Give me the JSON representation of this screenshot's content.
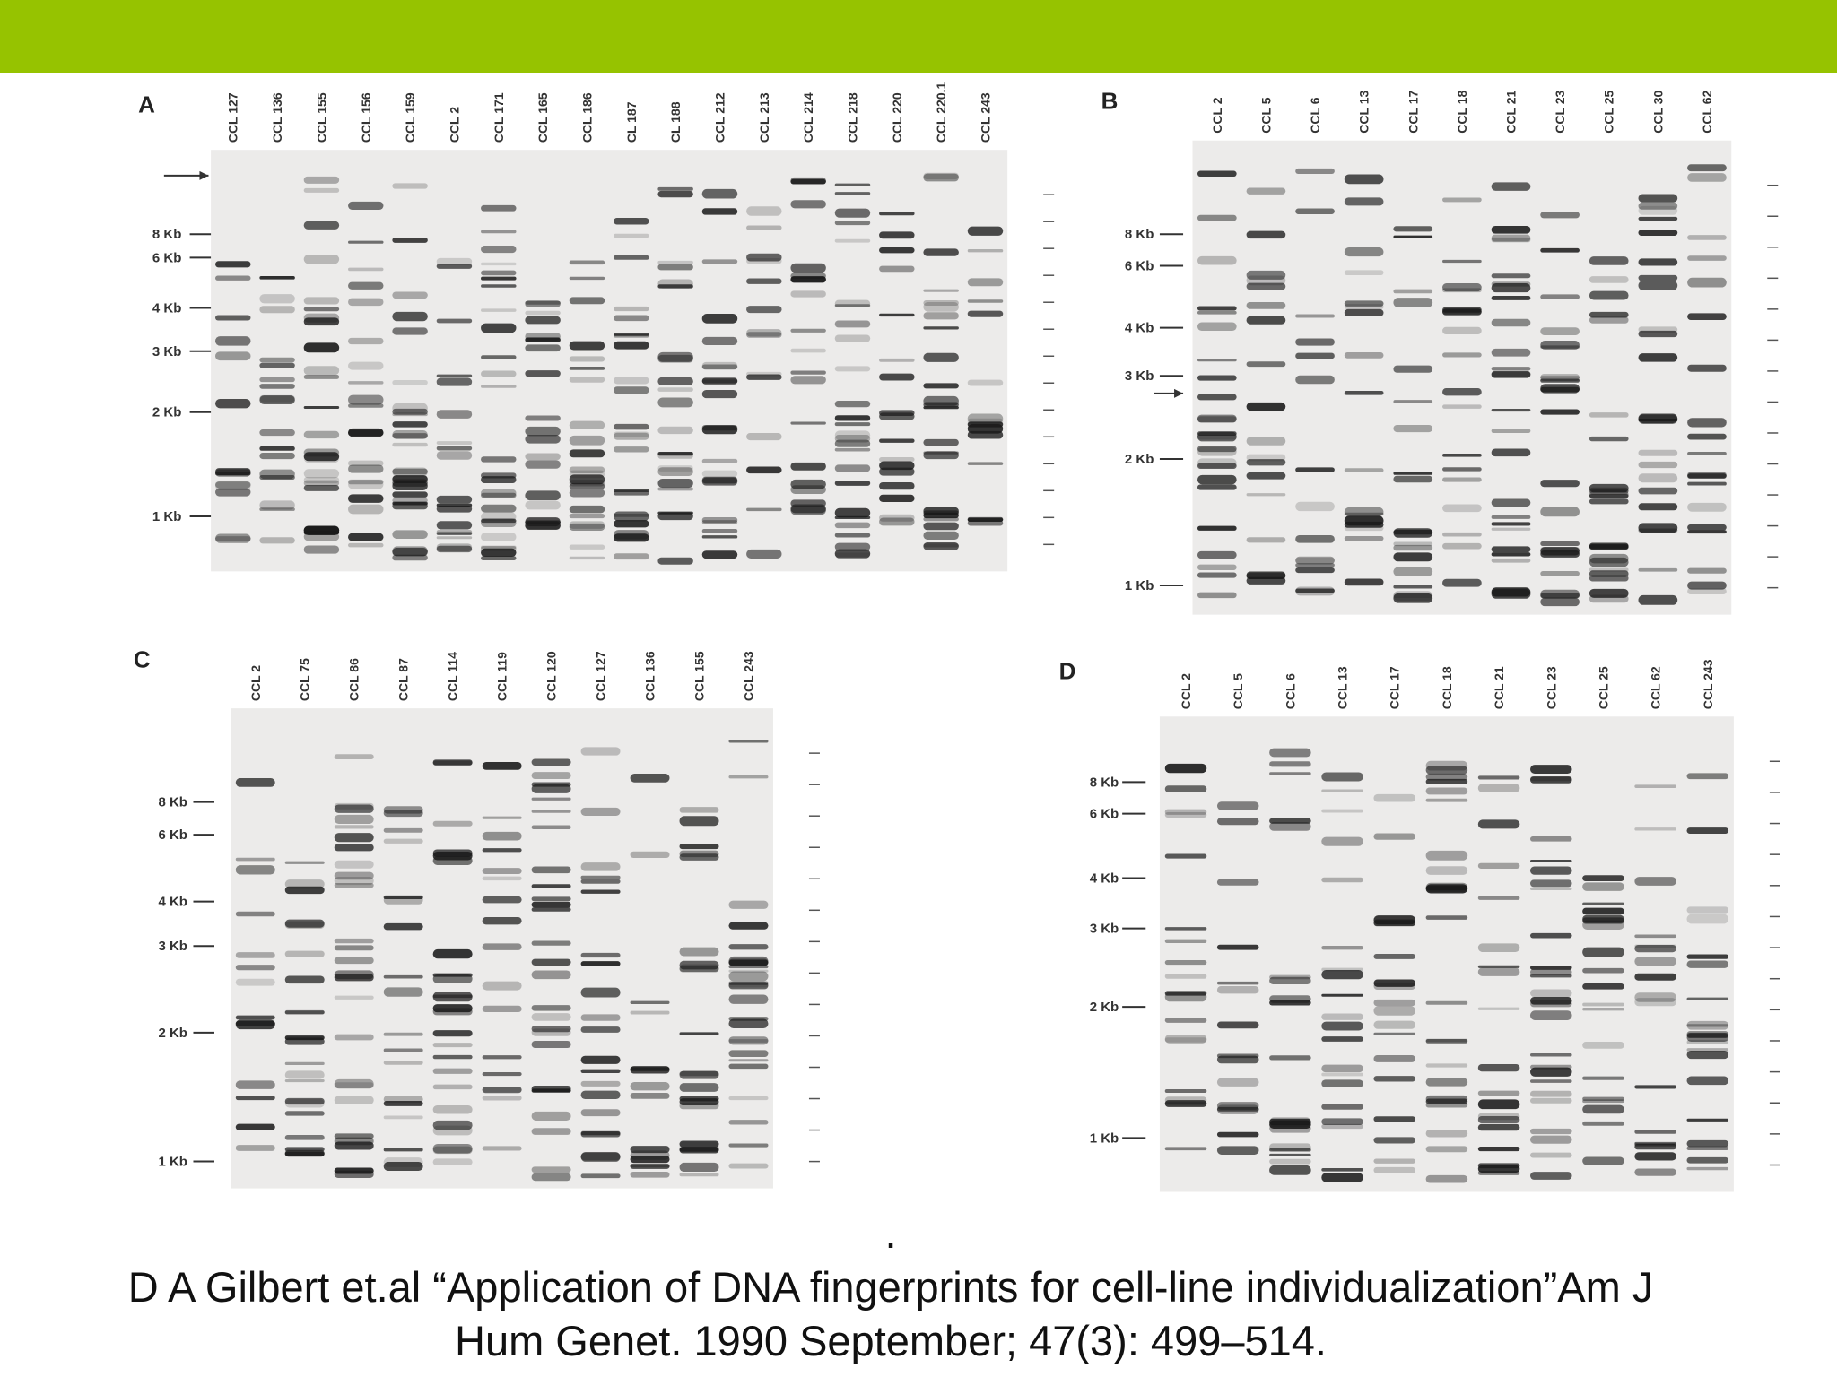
{
  "panels": [
    {
      "letter": "A",
      "lanes": [
        "CCL 127",
        "CCL 136",
        "CCL 155",
        "CCL 156",
        "CCL 159",
        "CCL 2",
        "CCL 171",
        "CCL 165",
        "CCL 186",
        "CL 187",
        "CL 188",
        "CCL 212",
        "CCL 213",
        "CCL 214",
        "CCL 218",
        "CCL 220",
        "CCL 220.1",
        "CCL 243"
      ],
      "markers": [
        "8 Kb",
        "6 Kb",
        "4 Kb",
        "3 Kb",
        "2 Kb",
        "1 Kb"
      ]
    },
    {
      "letter": "B",
      "lanes": [
        "CCL 2",
        "CCL 5",
        "CCL 6",
        "CCL 13",
        "CCL 17",
        "CCL 18",
        "CCL 21",
        "CCL 23",
        "CCL 25",
        "CCL 30",
        "CCL 62"
      ],
      "markers": [
        "8 Kb",
        "6 Kb",
        "4 Kb",
        "3 Kb",
        "2 Kb",
        "1 Kb"
      ]
    },
    {
      "letter": "C",
      "lanes": [
        "CCL 2",
        "CCL 75",
        "CCL 86",
        "CCL 87",
        "CCL 114",
        "CCL 119",
        "CCL 120",
        "CCL 127",
        "CCL 136",
        "CCL 155",
        "CCL 243"
      ],
      "markers": [
        "8 Kb",
        "6 Kb",
        "4 Kb",
        "3 Kb",
        "2 Kb",
        "1 Kb"
      ]
    },
    {
      "letter": "D",
      "lanes": [
        "CCL 2",
        "CCL 5",
        "CCL 6",
        "CCL 13",
        "CCL 17",
        "CCL 18",
        "CCL 21",
        "CCL 23",
        "CCL 25",
        "CCL 62",
        "CCL 243"
      ],
      "markers": [
        "8 Kb",
        "6 Kb",
        "4 Kb",
        "3 Kb",
        "2 Kb",
        "1 Kb"
      ]
    }
  ],
  "caption": {
    "dot": ".",
    "line1": "D A Gilbert et.al  “Application of DNA fingerprints for cell-line individualization”Am J",
    "line2": "Hum Genet. 1990 September; 47(3): 499–514."
  }
}
